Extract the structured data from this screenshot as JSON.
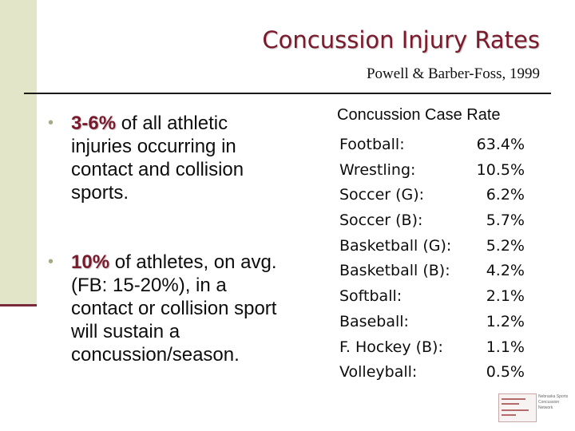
{
  "slide": {
    "title": "Concussion Injury Rates",
    "subtitle": "Powell & Barber-Foss, 1999",
    "accent_color": "#7a1a2c",
    "bullets": [
      {
        "highlight": "3-6%",
        "text": " of all athletic injuries occurring in contact and collision sports."
      },
      {
        "highlight": "10%",
        "text": " of athletes, on avg. (FB: 15-20%), in a contact or collision sport will sustain a concussion/season."
      }
    ],
    "rates_title": "Concussion Case Rate",
    "rates": [
      {
        "sport": "Football:",
        "rate": "63.4%"
      },
      {
        "sport": "Wrestling:",
        "rate": "10.5%"
      },
      {
        "sport": "Soccer (G):",
        "rate": "6.2%"
      },
      {
        "sport": "Soccer (B):",
        "rate": "5.7%"
      },
      {
        "sport": "Basketball (G):",
        "rate": "5.2%"
      },
      {
        "sport": "Basketball (B):",
        "rate": "4.2%"
      },
      {
        "sport": "Softball:",
        "rate": "2.1%"
      },
      {
        "sport": "Baseball:",
        "rate": "1.2%"
      },
      {
        "sport": "F. Hockey (B):",
        "rate": "1.1%"
      },
      {
        "sport": "Volleyball:",
        "rate": "0.5%"
      }
    ],
    "logo_text": "Nebraska Sports Concussion Network"
  }
}
